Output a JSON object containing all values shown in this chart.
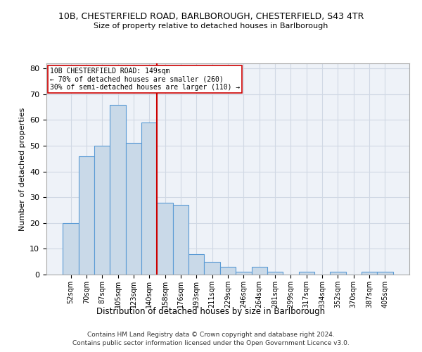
{
  "title1": "10B, CHESTERFIELD ROAD, BARLBOROUGH, CHESTERFIELD, S43 4TR",
  "title2": "Size of property relative to detached houses in Barlborough",
  "xlabel": "Distribution of detached houses by size in Barlborough",
  "ylabel": "Number of detached properties",
  "categories": [
    "52sqm",
    "70sqm",
    "87sqm",
    "105sqm",
    "123sqm",
    "140sqm",
    "158sqm",
    "176sqm",
    "193sqm",
    "211sqm",
    "229sqm",
    "246sqm",
    "264sqm",
    "281sqm",
    "299sqm",
    "317sqm",
    "334sqm",
    "352sqm",
    "370sqm",
    "387sqm",
    "405sqm"
  ],
  "values": [
    20,
    46,
    50,
    66,
    51,
    59,
    28,
    27,
    8,
    5,
    3,
    1,
    3,
    1,
    0,
    1,
    0,
    1,
    0,
    1,
    1
  ],
  "bar_color": "#c9d9e8",
  "bar_edge_color": "#5b9bd5",
  "vline_x": 5.5,
  "vline_color": "#cc0000",
  "annotation_text": "10B CHESTERFIELD ROAD: 149sqm\n← 70% of detached houses are smaller (260)\n30% of semi-detached houses are larger (110) →",
  "annotation_box_color": "white",
  "annotation_box_edge_color": "#cc0000",
  "ylim": [
    0,
    82
  ],
  "yticks": [
    0,
    10,
    20,
    30,
    40,
    50,
    60,
    70,
    80
  ],
  "grid_color": "#d0d8e4",
  "footer1": "Contains HM Land Registry data © Crown copyright and database right 2024.",
  "footer2": "Contains public sector information licensed under the Open Government Licence v3.0.",
  "bg_color": "#eef2f8"
}
